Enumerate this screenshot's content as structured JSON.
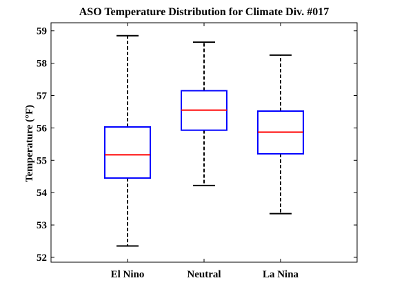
{
  "chart_data": {
    "type": "box",
    "title": "ASO Temperature Distribution for Climate Div. #017",
    "xlabel": "",
    "ylabel": "Temperature (°F)",
    "categories": [
      "El Nino",
      "Neutral",
      "La Nina"
    ],
    "ylim": [
      51.85,
      59.25
    ],
    "yticks": [
      "52",
      "53",
      "54",
      "55",
      "56",
      "57",
      "58",
      "59"
    ],
    "grid": false,
    "legend": "none",
    "boxes": [
      {
        "category": "El Nino",
        "min": 52.35,
        "q1": 54.45,
        "median": 55.17,
        "q3": 56.03,
        "max": 58.85
      },
      {
        "category": "Neutral",
        "min": 54.22,
        "q1": 55.93,
        "median": 56.55,
        "q3": 57.15,
        "max": 58.65
      },
      {
        "category": "La Nina",
        "min": 53.35,
        "q1": 55.2,
        "median": 55.87,
        "q3": 56.52,
        "max": 58.25
      }
    ],
    "colors": {
      "box": "#0000ff",
      "median": "#ff0000",
      "whisker": "#000000",
      "axes": "#000000",
      "background": "#ffffff"
    }
  }
}
